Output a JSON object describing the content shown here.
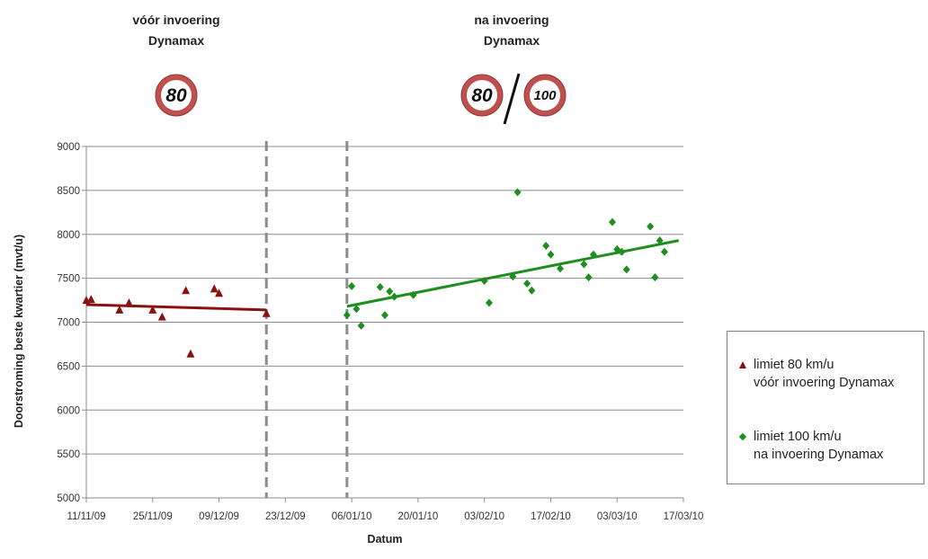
{
  "chart_data": {
    "type": "scatter",
    "title": "",
    "xlabel": "Datum",
    "ylabel": "Doorstroming beste kwartier (mvt/u)",
    "x_type": "date",
    "xlim": [
      "2009-11-11",
      "2010-03-17"
    ],
    "ylim": [
      5000,
      9000
    ],
    "x_ticks": [
      "11/11/09",
      "25/11/09",
      "09/12/09",
      "23/12/09",
      "06/01/10",
      "20/01/10",
      "03/02/10",
      "17/02/10",
      "03/03/10",
      "17/03/10"
    ],
    "y_ticks": [
      "5000",
      "5500",
      "6000",
      "6500",
      "7000",
      "7500",
      "8000",
      "8500",
      "9000"
    ],
    "grid": "horizontal",
    "legend_position": "right",
    "periods": [
      {
        "title_line1": "vóór invoering",
        "title_line2": "Dynamax",
        "signs": [
          "80"
        ]
      },
      {
        "title_line1": "na invoering",
        "title_line2": "Dynamax",
        "signs": [
          "80",
          "100"
        ]
      }
    ],
    "dividers": [
      "2009-12-19",
      "2010-01-05"
    ],
    "series": [
      {
        "name": "limiet 80 km/u vóór invoering Dynamax",
        "legend_line1": "limiet 80 km/u",
        "legend_line2": "vóór invoering Dynamax",
        "color": "#8b1111",
        "marker": "triangle",
        "points": [
          [
            "2009-11-11",
            7250
          ],
          [
            "2009-11-12",
            7260
          ],
          [
            "2009-11-18",
            7140
          ],
          [
            "2009-11-20",
            7220
          ],
          [
            "2009-11-25",
            7140
          ],
          [
            "2009-11-27",
            7060
          ],
          [
            "2009-12-02",
            7360
          ],
          [
            "2009-12-03",
            6640
          ],
          [
            "2009-12-08",
            7380
          ],
          [
            "2009-12-09",
            7330
          ],
          [
            "2009-12-19",
            7100
          ]
        ],
        "trend": [
          [
            "2009-11-11",
            7200
          ],
          [
            "2009-12-19",
            7140
          ]
        ]
      },
      {
        "name": "limiet 100 km/u na invoering Dynamax",
        "legend_line1": "limiet 100 km/u",
        "legend_line2": "na invoering Dynamax",
        "color": "#1e8e1e",
        "marker": "diamond",
        "points": [
          [
            "2010-01-05",
            7080
          ],
          [
            "2010-01-06",
            7410
          ],
          [
            "2010-01-07",
            7150
          ],
          [
            "2010-01-08",
            6960
          ],
          [
            "2010-01-12",
            7400
          ],
          [
            "2010-01-13",
            7080
          ],
          [
            "2010-01-14",
            7350
          ],
          [
            "2010-01-15",
            7290
          ],
          [
            "2010-01-19",
            7310
          ],
          [
            "2010-02-03",
            7470
          ],
          [
            "2010-02-04",
            7220
          ],
          [
            "2010-02-09",
            7520
          ],
          [
            "2010-02-10",
            8480
          ],
          [
            "2010-02-12",
            7440
          ],
          [
            "2010-02-13",
            7360
          ],
          [
            "2010-02-16",
            7870
          ],
          [
            "2010-02-17",
            7770
          ],
          [
            "2010-02-19",
            7610
          ],
          [
            "2010-02-24",
            7660
          ],
          [
            "2010-02-25",
            7510
          ],
          [
            "2010-02-26",
            7770
          ],
          [
            "2010-03-02",
            8140
          ],
          [
            "2010-03-03",
            7830
          ],
          [
            "2010-03-04",
            7800
          ],
          [
            "2010-03-05",
            7600
          ],
          [
            "2010-03-10",
            8090
          ],
          [
            "2010-03-11",
            7510
          ],
          [
            "2010-03-12",
            7930
          ],
          [
            "2010-03-13",
            7800
          ]
        ],
        "trend": [
          [
            "2010-01-05",
            7180
          ],
          [
            "2010-03-16",
            7930
          ]
        ]
      }
    ]
  }
}
